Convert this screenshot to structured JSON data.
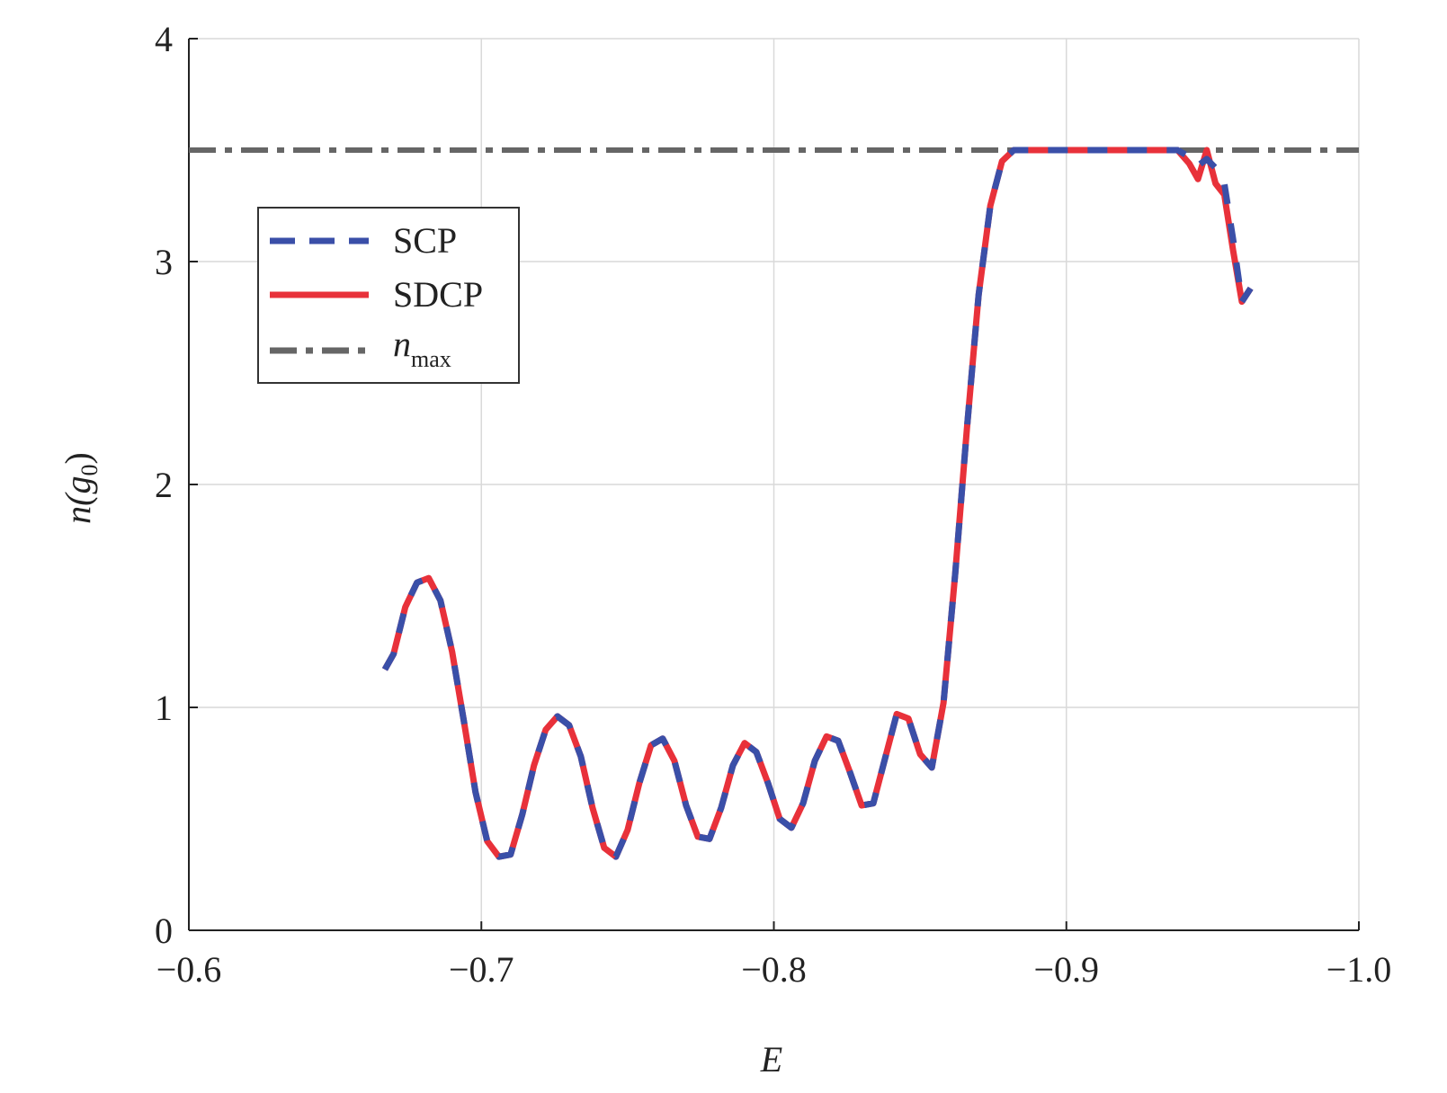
{
  "chart_data": {
    "type": "line",
    "title": "",
    "xlabel": "E",
    "ylabel": {
      "main": "n(g",
      "sub": "0",
      "close": ")"
    },
    "xlim": [
      -0.6,
      -1.0
    ],
    "ylim": [
      0,
      4
    ],
    "xticks": [
      -0.6,
      -0.7,
      -0.8,
      -0.9,
      -1.0
    ],
    "xtick_labels": [
      "−0.6",
      "−0.7",
      "−0.8",
      "−0.9",
      "−1.0"
    ],
    "yticks": [
      0,
      1,
      2,
      3,
      4
    ],
    "ytick_labels": [
      "0",
      "1",
      "2",
      "3",
      "4"
    ],
    "grid": true,
    "legend_position": "upper-left",
    "series": [
      {
        "name": "SCP",
        "style": "dashed",
        "color": "#3a4fa8",
        "x": [
          -0.667,
          -0.67,
          -0.674,
          -0.678,
          -0.682,
          -0.686,
          -0.69,
          -0.694,
          -0.698,
          -0.702,
          -0.706,
          -0.71,
          -0.714,
          -0.718,
          -0.722,
          -0.726,
          -0.73,
          -0.734,
          -0.738,
          -0.742,
          -0.746,
          -0.75,
          -0.754,
          -0.758,
          -0.762,
          -0.766,
          -0.77,
          -0.774,
          -0.778,
          -0.782,
          -0.786,
          -0.79,
          -0.794,
          -0.798,
          -0.802,
          -0.806,
          -0.81,
          -0.814,
          -0.818,
          -0.822,
          -0.826,
          -0.83,
          -0.834,
          -0.838,
          -0.842,
          -0.846,
          -0.85,
          -0.854,
          -0.858,
          -0.862,
          -0.866,
          -0.87,
          -0.874,
          -0.878,
          -0.882,
          -0.886,
          -0.89,
          -0.894,
          -0.898,
          -0.902,
          -0.906,
          -0.91,
          -0.914,
          -0.92,
          -0.926,
          -0.932,
          -0.938,
          -0.942,
          -0.945,
          -0.948,
          -0.951,
          -0.954,
          -0.957,
          -0.96,
          -0.963
        ],
        "y": [
          1.17,
          1.24,
          1.45,
          1.56,
          1.58,
          1.48,
          1.25,
          0.94,
          0.62,
          0.4,
          0.33,
          0.34,
          0.52,
          0.74,
          0.9,
          0.96,
          0.92,
          0.78,
          0.55,
          0.37,
          0.33,
          0.45,
          0.66,
          0.83,
          0.86,
          0.76,
          0.56,
          0.42,
          0.41,
          0.55,
          0.74,
          0.84,
          0.8,
          0.66,
          0.5,
          0.46,
          0.57,
          0.76,
          0.87,
          0.85,
          0.71,
          0.56,
          0.57,
          0.77,
          0.97,
          0.95,
          0.79,
          0.73,
          1.02,
          1.6,
          2.25,
          2.85,
          3.25,
          3.45,
          3.5,
          3.5,
          3.5,
          3.5,
          3.5,
          3.5,
          3.5,
          3.5,
          3.5,
          3.5,
          3.5,
          3.5,
          3.5,
          3.47,
          3.43,
          3.46,
          3.42,
          3.35,
          3.1,
          2.82,
          2.88
        ]
      },
      {
        "name": "SDCP",
        "style": "solid",
        "color": "#e8313a",
        "x": [
          -0.667,
          -0.67,
          -0.674,
          -0.678,
          -0.682,
          -0.686,
          -0.69,
          -0.694,
          -0.698,
          -0.702,
          -0.706,
          -0.71,
          -0.714,
          -0.718,
          -0.722,
          -0.726,
          -0.73,
          -0.734,
          -0.738,
          -0.742,
          -0.746,
          -0.75,
          -0.754,
          -0.758,
          -0.762,
          -0.766,
          -0.77,
          -0.774,
          -0.778,
          -0.782,
          -0.786,
          -0.79,
          -0.794,
          -0.798,
          -0.802,
          -0.806,
          -0.81,
          -0.814,
          -0.818,
          -0.822,
          -0.826,
          -0.83,
          -0.834,
          -0.838,
          -0.842,
          -0.846,
          -0.85,
          -0.854,
          -0.858,
          -0.862,
          -0.866,
          -0.87,
          -0.874,
          -0.878,
          -0.882,
          -0.886,
          -0.89,
          -0.894,
          -0.898,
          -0.902,
          -0.906,
          -0.91,
          -0.914,
          -0.92,
          -0.926,
          -0.932,
          -0.938,
          -0.942,
          -0.945,
          -0.948,
          -0.951,
          -0.954,
          -0.957,
          -0.96,
          -0.963
        ],
        "y": [
          1.17,
          1.24,
          1.45,
          1.56,
          1.58,
          1.48,
          1.25,
          0.94,
          0.62,
          0.4,
          0.33,
          0.34,
          0.52,
          0.74,
          0.9,
          0.96,
          0.92,
          0.78,
          0.55,
          0.37,
          0.33,
          0.45,
          0.66,
          0.83,
          0.86,
          0.76,
          0.56,
          0.42,
          0.41,
          0.55,
          0.74,
          0.84,
          0.8,
          0.66,
          0.5,
          0.46,
          0.57,
          0.76,
          0.87,
          0.85,
          0.71,
          0.56,
          0.57,
          0.77,
          0.97,
          0.95,
          0.79,
          0.73,
          1.02,
          1.6,
          2.25,
          2.85,
          3.25,
          3.45,
          3.5,
          3.5,
          3.5,
          3.5,
          3.5,
          3.5,
          3.5,
          3.5,
          3.5,
          3.5,
          3.5,
          3.5,
          3.5,
          3.44,
          3.37,
          3.5,
          3.35,
          3.3,
          3.05,
          2.82,
          2.88
        ]
      }
    ],
    "reference_line": {
      "name": "n",
      "name_sub": "max",
      "y": 3.5,
      "style": "dash-dot",
      "color": "#666666"
    }
  }
}
